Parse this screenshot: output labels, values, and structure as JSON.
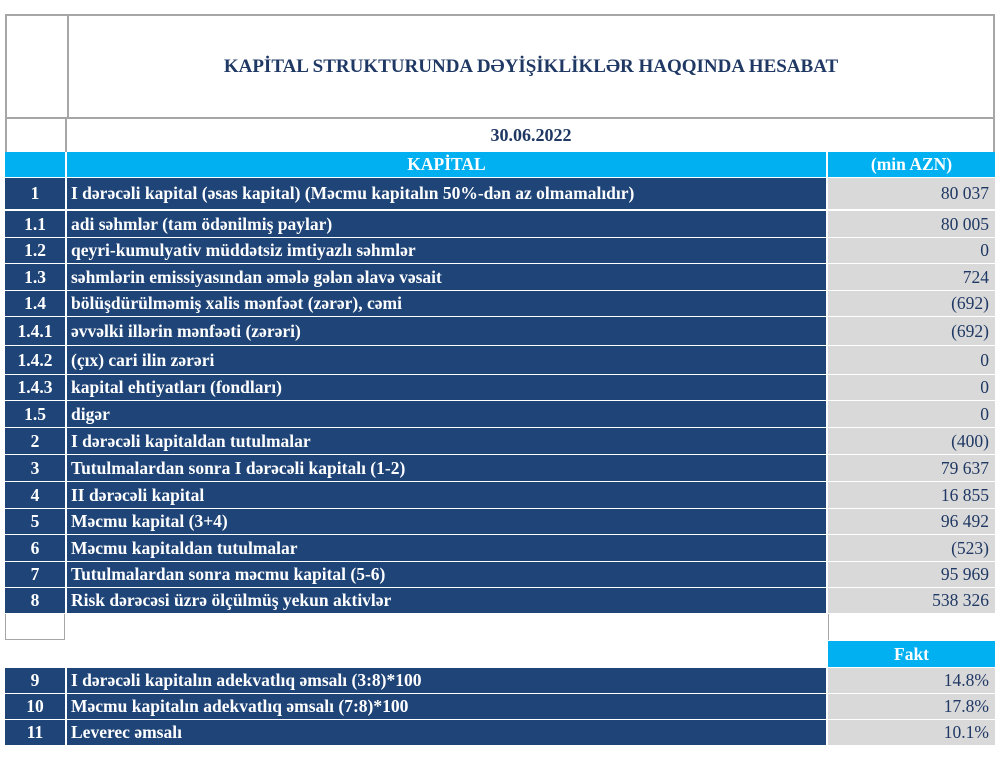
{
  "title": "KAPİTAL STRUKTURUNDA DƏYİŞİKLİKLƏR HAQQINDA HESABAT",
  "date": "30.06.2022",
  "header": {
    "label": "KAPİTAL",
    "unit": "(min AZN)"
  },
  "rows": [
    {
      "num": "1",
      "label": "I dərəcəli kapital (əsas kapital) (Məcmu kapitalın 50%-dən az olmamalıdır)",
      "value": "80 037"
    },
    {
      "num": "1.1",
      "label": "adi səhmlər (tam ödənilmiş paylar)",
      "value": "80 005"
    },
    {
      "num": "1.2",
      "label": "qeyri-kumulyativ müddətsiz imtiyazlı səhmlər",
      "value": "0"
    },
    {
      "num": "1.3",
      "label": "səhmlərin emissiyasından əmələ gələn  əlavə vəsait",
      "value": "724"
    },
    {
      "num": "1.4",
      "label": "bölüşdürülməmiş xalis mənfəət (zərər), cəmi",
      "value": "(692)"
    },
    {
      "num": "1.4.1",
      "label": "əvvəlki illərin mənfəəti (zərəri)",
      "value": "(692)"
    },
    {
      "num": "1.4.2",
      "label": "(çıx) cari ilin zərəri",
      "value": "0"
    },
    {
      "num": "1.4.3",
      "label": "kapital ehtiyatları (fondları)",
      "value": "0"
    },
    {
      "num": "1.5",
      "label": "digər",
      "value": "0"
    },
    {
      "num": "2",
      "label": "I dərəcəli kapitaldan  tutulmalar",
      "value": "(400)"
    },
    {
      "num": "3",
      "label": "Tutulmalardan  sonra I dərəcəli kapitalı (1-2)",
      "value": "79 637"
    },
    {
      "num": "4",
      "label": "II dərəcəli  kapital",
      "value": "16 855"
    },
    {
      "num": "5",
      "label": "Məcmu kapital (3+4)",
      "value": "96 492"
    },
    {
      "num": "6",
      "label": "Məcmu kapitaldan tutulmalar",
      "value": "(523)"
    },
    {
      "num": "7",
      "label": "Tutulmalardan  sonra məcmu kapital (5-6)",
      "value": "95 969"
    },
    {
      "num": "8",
      "label": "Risk dərəcəsi üzrə ölçülmüş  yekun aktivlər",
      "value": "538 326"
    }
  ],
  "ratios_header": "Fakt",
  "ratios": [
    {
      "num": "9",
      "label": "I dərəcəli  kapitalın  adekvatlıq əmsalı (3:8)*100",
      "value": "14.8%"
    },
    {
      "num": "10",
      "label": "Məcmu kapitalın  adekvatlıq  əmsalı (7:8)*100",
      "value": "17.8%"
    },
    {
      "num": "11",
      "label": "Leverec əmsalı",
      "value": "10.1%"
    }
  ]
}
